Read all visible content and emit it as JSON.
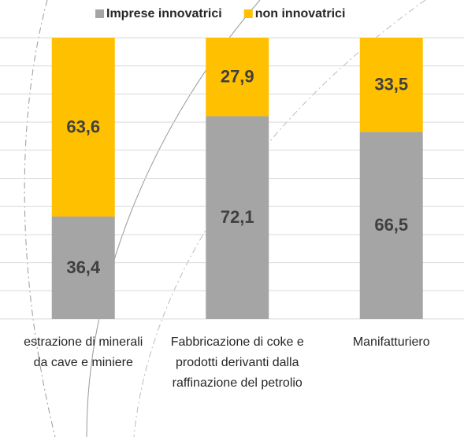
{
  "chart_data": {
    "type": "stacked_bar",
    "categories": [
      "estrazione di minerali da cave e miniere",
      "Fabbricazione di coke e prodotti derivanti dalla raffinazione del petrolio",
      "Manifatturiero"
    ],
    "series": [
      {
        "name": "Imprese innovatrici",
        "color": "#a5a5a5",
        "values": [
          36.4,
          72.1,
          66.5
        ],
        "value_labels": [
          "36,4",
          "72,1",
          "66,5"
        ]
      },
      {
        "name": "non innovatrici",
        "color": "#ffc000",
        "values": [
          63.6,
          27.9,
          33.5
        ],
        "value_labels": [
          "63,6",
          "27,9",
          "33,5"
        ]
      }
    ],
    "ylim": [
      0,
      100
    ],
    "yticks": [
      0,
      10,
      20,
      30,
      40,
      50,
      60,
      70,
      80,
      90,
      100
    ],
    "grid": true,
    "legend": "top"
  }
}
